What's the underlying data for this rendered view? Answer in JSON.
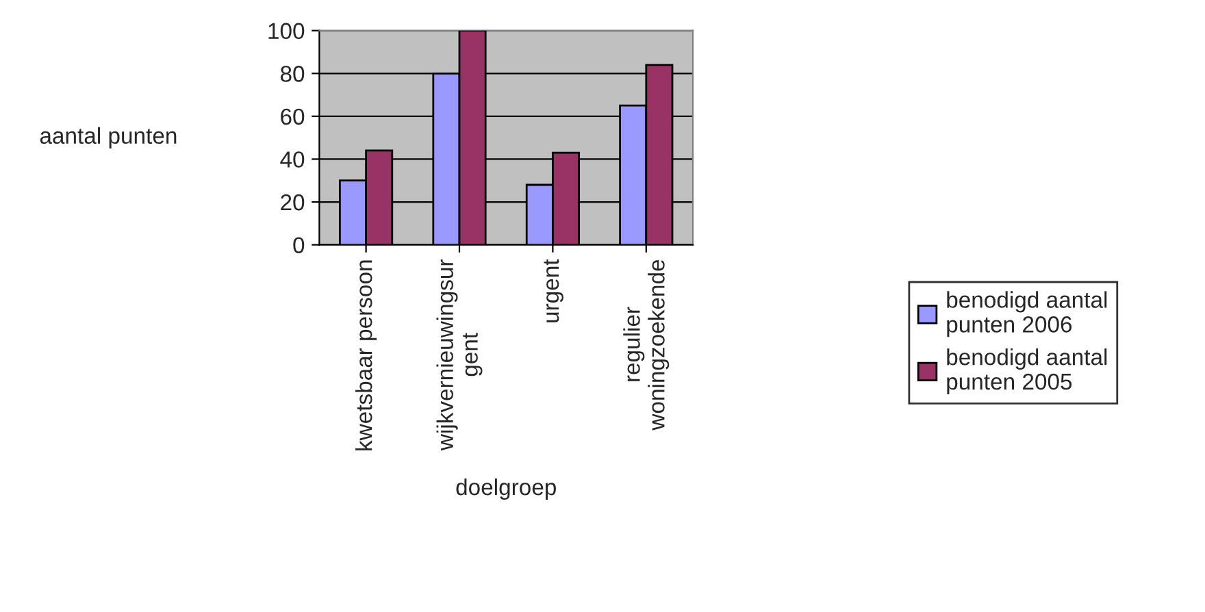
{
  "chart_data": {
    "type": "bar",
    "xlabel": "doelgroep",
    "ylabel": "aantal punten",
    "categories": [
      "kwetsbaar persoon",
      "wijkvernieuwingsur\ngent",
      "urgent",
      "regulier\nwoningzoekende"
    ],
    "series": [
      {
        "name": "benodigd aantal punten 2006",
        "color": "#9999ff",
        "values": [
          30,
          80,
          28,
          65
        ]
      },
      {
        "name": "benodigd aantal punten 2005",
        "color": "#993366",
        "values": [
          44,
          100,
          43,
          84
        ]
      }
    ],
    "ylim": [
      0,
      100
    ],
    "yticks": [
      0,
      20,
      40,
      60,
      80,
      100
    ],
    "grid": "y",
    "legend": "right"
  }
}
